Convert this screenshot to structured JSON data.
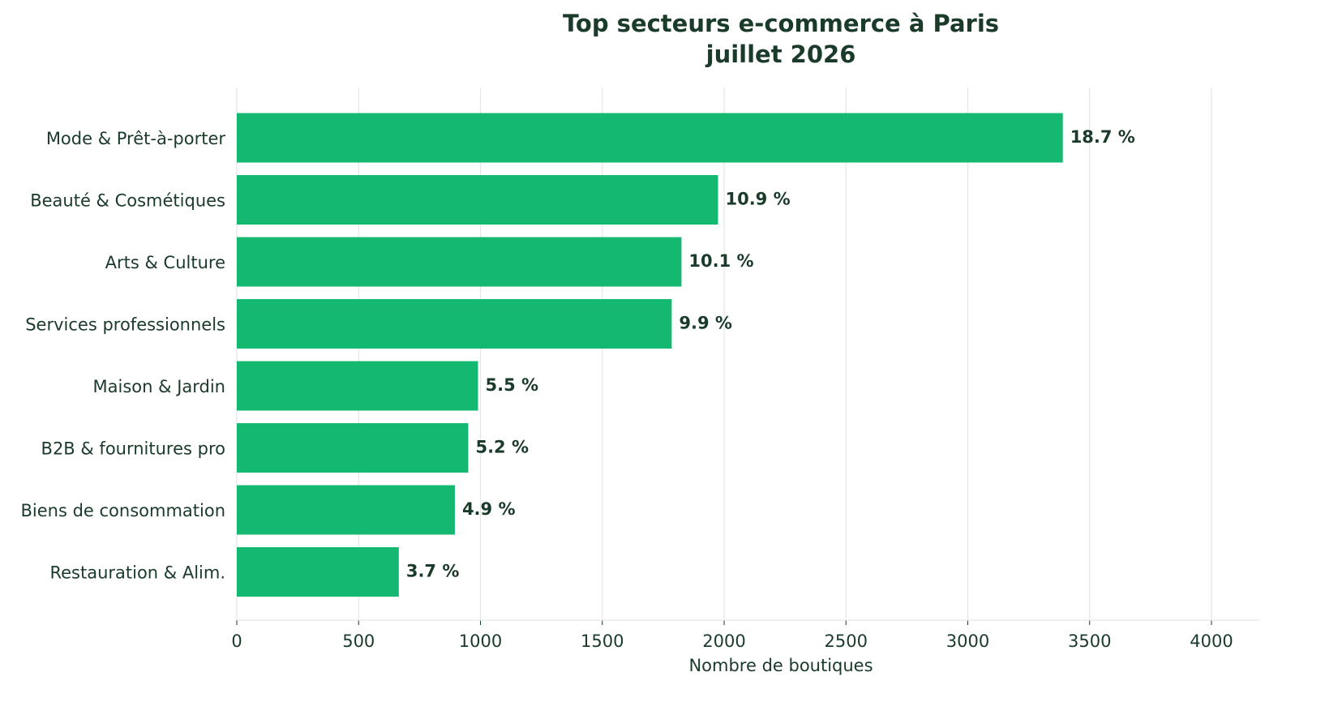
{
  "chart_data": {
    "type": "bar",
    "orientation": "horizontal",
    "title": "Top secteurs e-commerce à Paris",
    "subtitle": "juillet 2026",
    "xlabel": "Nombre de boutiques",
    "ylabel": "",
    "xlim": [
      0,
      4200
    ],
    "xticks": [
      0,
      500,
      1000,
      1500,
      2000,
      2500,
      3000,
      3500,
      4000
    ],
    "grid": true,
    "bar_color": "#14b870",
    "categories": [
      "Mode & Prêt-à-porter",
      "Beauté & Cosmétiques",
      "Arts & Culture",
      "Services professionnels",
      "Maison & Jardin",
      "B2B & fournitures pro",
      "Biens de consommation",
      "Restauration & Alim."
    ],
    "values": [
      3390,
      1975,
      1825,
      1785,
      990,
      950,
      895,
      665
    ],
    "data_labels": [
      "18.7 %",
      "10.9 %",
      "10.1 %",
      "9.9 %",
      "5.5 %",
      "5.2 %",
      "4.9 %",
      "3.7 %"
    ]
  }
}
